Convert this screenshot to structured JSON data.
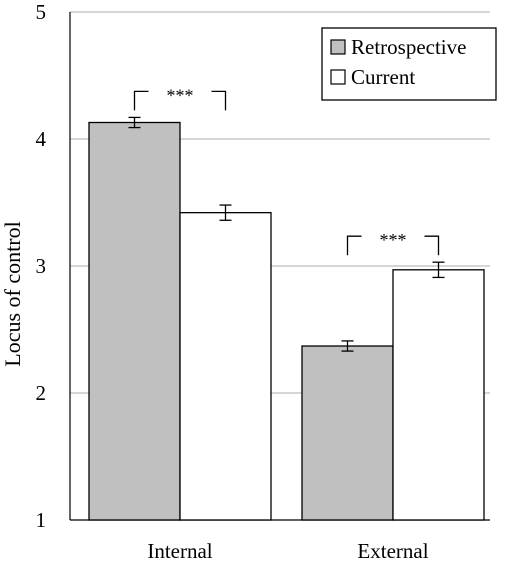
{
  "chart_data": {
    "type": "bar",
    "title": "",
    "xlabel": "",
    "ylabel": "Locus of control",
    "ylim": [
      1,
      5
    ],
    "yticks": [
      1,
      2,
      3,
      4,
      5
    ],
    "grid": true,
    "legend_position": "top-right",
    "categories": [
      "Internal",
      "External"
    ],
    "series": [
      {
        "name": "Retrospective",
        "values": [
          4.13,
          2.37
        ],
        "errors": [
          0.04,
          0.04
        ],
        "color": "#c0c0c0"
      },
      {
        "name": "Current",
        "values": [
          3.42,
          2.97
        ],
        "errors": [
          0.06,
          0.06
        ],
        "color": "#ffffff"
      }
    ],
    "annotations": [
      {
        "category": "Internal",
        "text": "***"
      },
      {
        "category": "External",
        "text": "***"
      }
    ]
  }
}
